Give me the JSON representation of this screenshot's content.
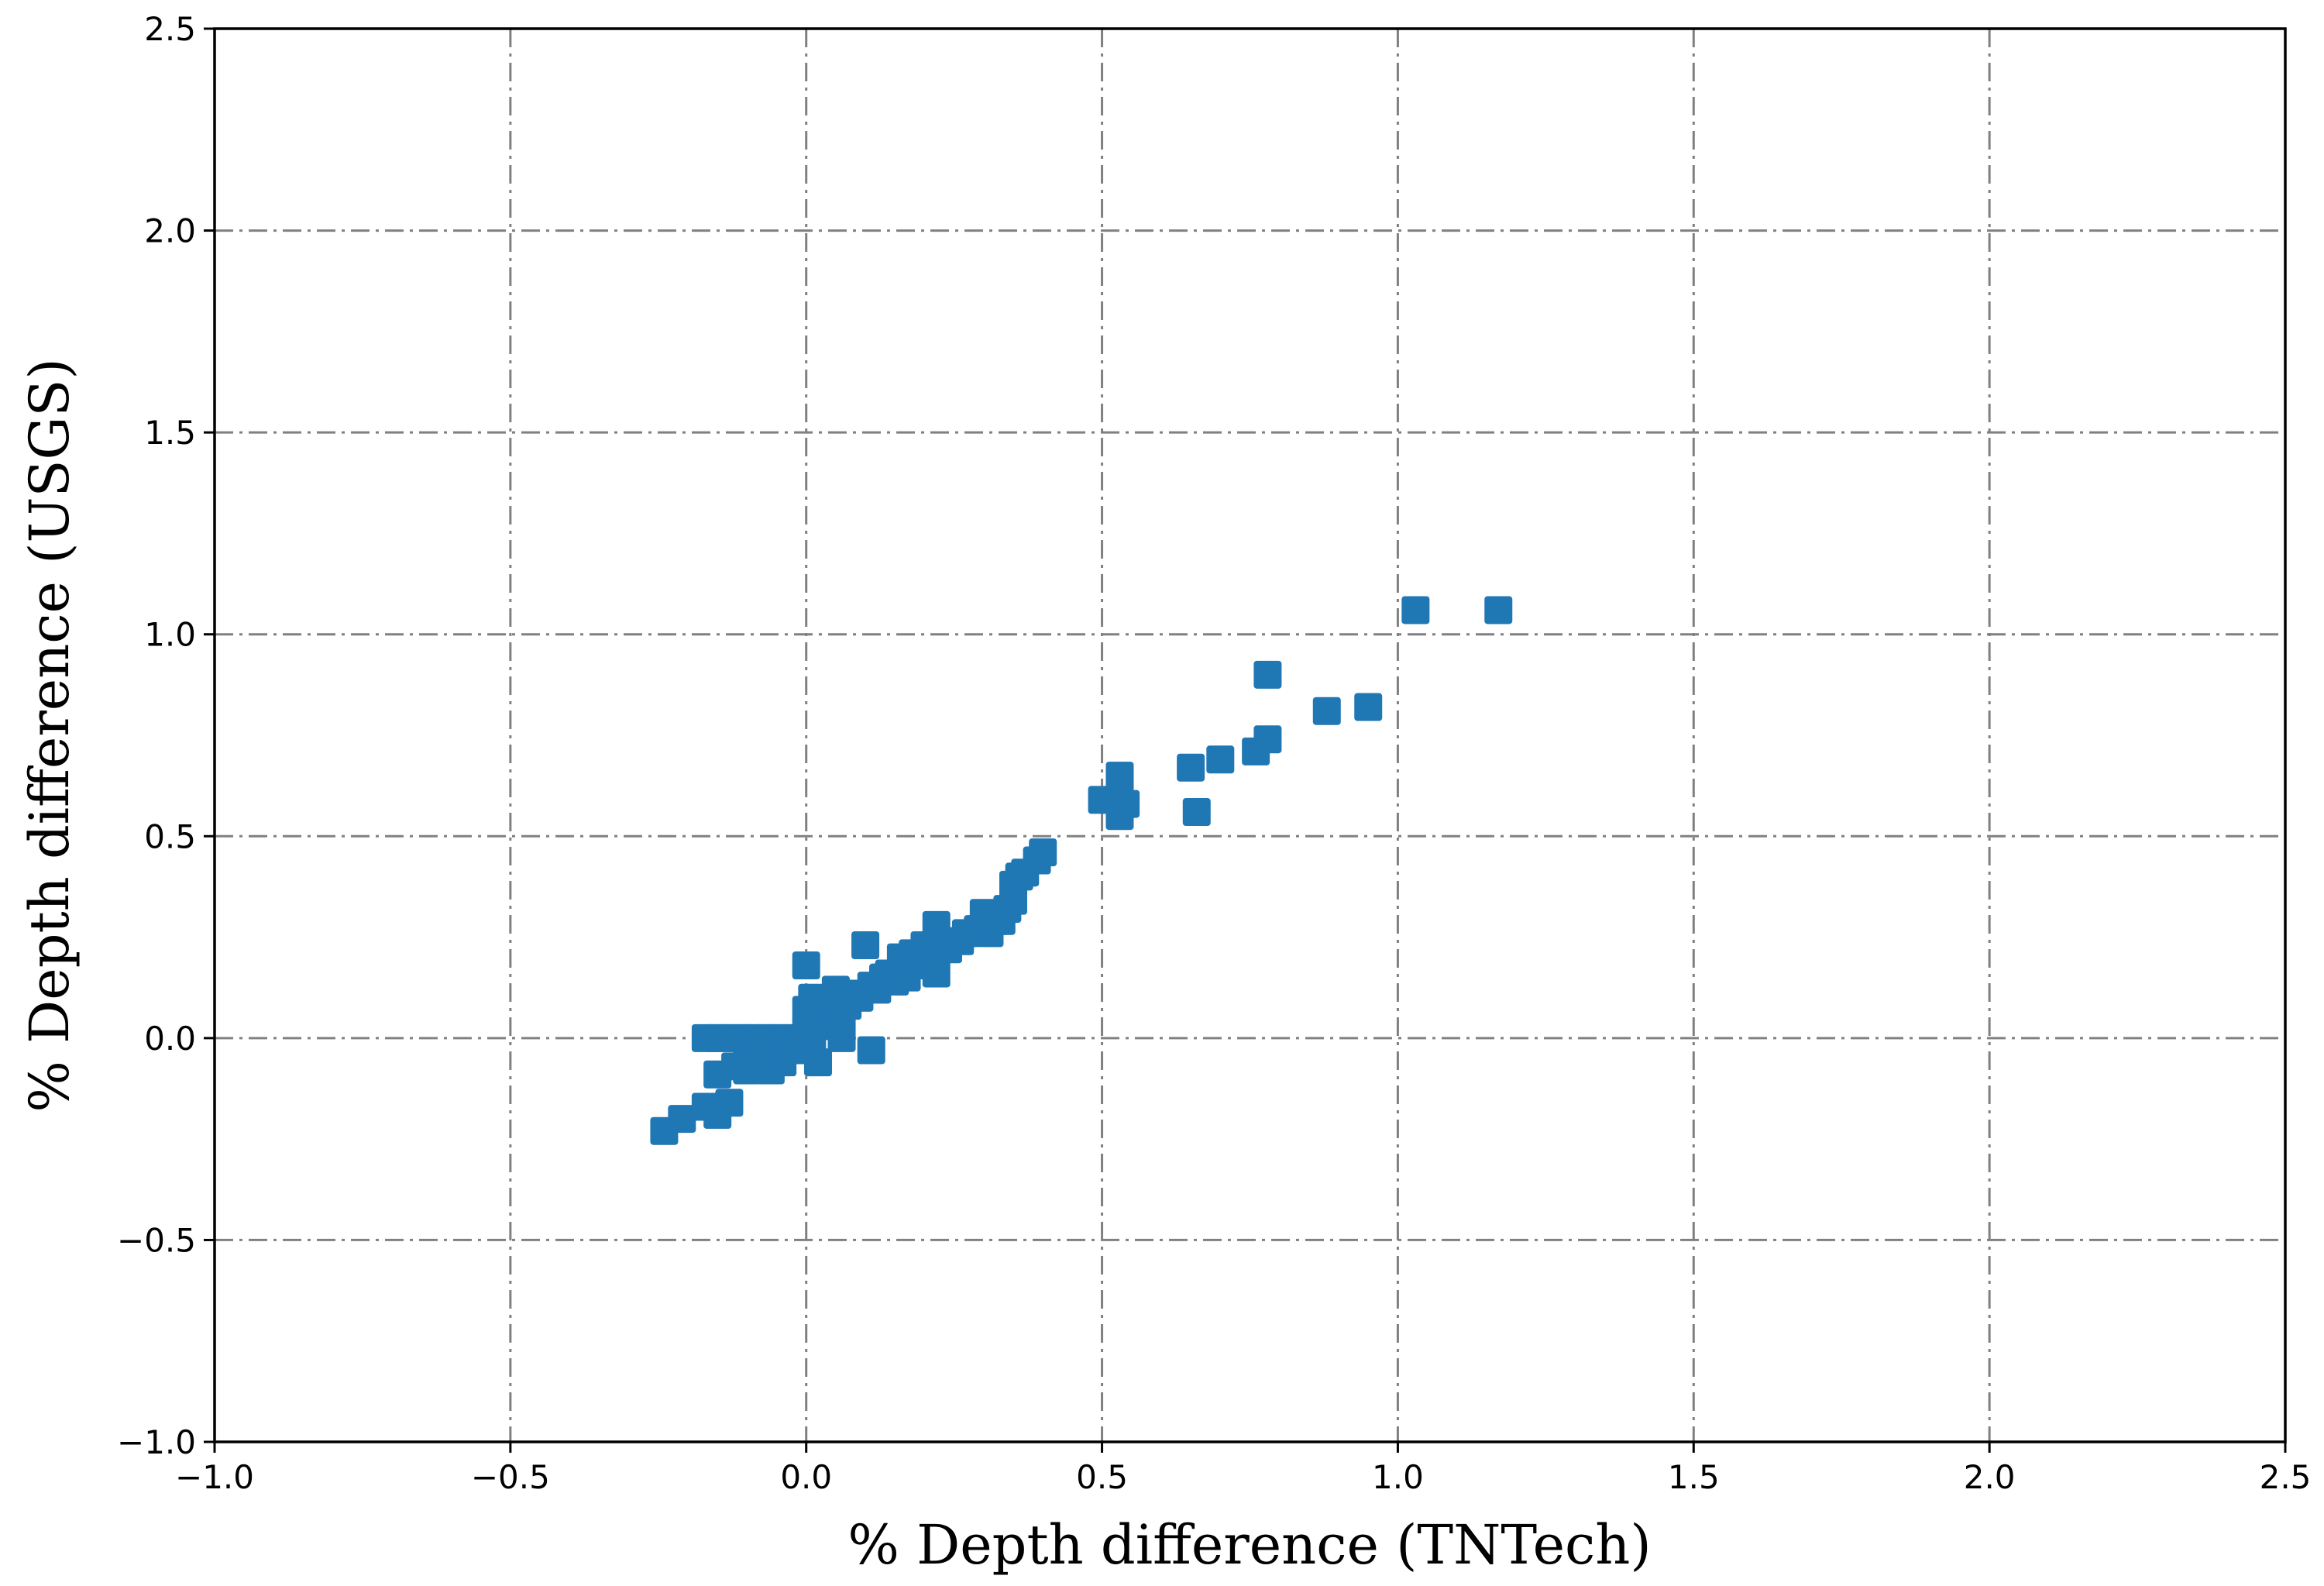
{
  "chart_data": {
    "type": "scatter",
    "title": "",
    "xlabel": "% Depth difference (TNTech)",
    "ylabel": "% Depth difference (USGS)",
    "xlim": [
      -1.0,
      2.5
    ],
    "ylim": [
      -1.0,
      2.5
    ],
    "x_ticks": [
      "−1.0",
      "−0.5",
      "0.0",
      "0.5",
      "1.0",
      "1.5",
      "2.0",
      "2.5"
    ],
    "y_ticks": [
      "−1.0",
      "−0.5",
      "0.0",
      "0.5",
      "1.0",
      "1.5",
      "2.0",
      "2.5"
    ],
    "x_tick_values": [
      -1.0,
      -0.5,
      0.0,
      0.5,
      1.0,
      1.5,
      2.0,
      2.5
    ],
    "y_tick_values": [
      -1.0,
      -0.5,
      0.0,
      0.5,
      1.0,
      1.5,
      2.0,
      2.5
    ],
    "grid": true,
    "marker": "square",
    "color": "#1f77b4",
    "grid_color": "#808080",
    "points": [
      [
        -0.24,
        -0.23
      ],
      [
        -0.21,
        -0.2
      ],
      [
        -0.17,
        -0.17
      ],
      [
        -0.15,
        -0.19
      ],
      [
        -0.13,
        -0.16
      ],
      [
        -0.15,
        -0.09
      ],
      [
        -0.12,
        -0.07
      ],
      [
        -0.1,
        -0.08
      ],
      [
        -0.08,
        -0.07
      ],
      [
        -0.06,
        -0.08
      ],
      [
        -0.04,
        -0.06
      ],
      [
        -0.17,
        0.0
      ],
      [
        -0.15,
        0.0
      ],
      [
        -0.13,
        0.0
      ],
      [
        -0.11,
        0.0
      ],
      [
        -0.09,
        0.0
      ],
      [
        -0.07,
        0.0
      ],
      [
        -0.05,
        0.0
      ],
      [
        -0.03,
        0.0
      ],
      [
        -0.01,
        0.0
      ],
      [
        0.01,
        0.0
      ],
      [
        -0.1,
        -0.04
      ],
      [
        -0.07,
        -0.03
      ],
      [
        -0.03,
        -0.02
      ],
      [
        0.0,
        -0.03
      ],
      [
        0.02,
        -0.06
      ],
      [
        0.0,
        0.02
      ],
      [
        0.01,
        0.05
      ],
      [
        0.0,
        0.07
      ],
      [
        0.01,
        0.1
      ],
      [
        0.0,
        0.18
      ],
      [
        0.02,
        0.03
      ],
      [
        0.03,
        0.06
      ],
      [
        0.04,
        0.09
      ],
      [
        0.05,
        0.12
      ],
      [
        0.04,
        0.03
      ],
      [
        0.06,
        0.05
      ],
      [
        0.06,
        0.0
      ],
      [
        0.07,
        0.08
      ],
      [
        0.08,
        0.11
      ],
      [
        0.09,
        0.1
      ],
      [
        0.1,
        0.23
      ],
      [
        0.11,
        -0.03
      ],
      [
        0.11,
        0.13
      ],
      [
        0.12,
        0.12
      ],
      [
        0.13,
        0.15
      ],
      [
        0.14,
        0.16
      ],
      [
        0.15,
        0.14
      ],
      [
        0.16,
        0.17
      ],
      [
        0.16,
        0.2
      ],
      [
        0.17,
        0.15
      ],
      [
        0.18,
        0.21
      ],
      [
        0.19,
        0.19
      ],
      [
        0.2,
        0.23
      ],
      [
        0.21,
        0.18
      ],
      [
        0.22,
        0.16
      ],
      [
        0.22,
        0.28
      ],
      [
        0.23,
        0.24
      ],
      [
        0.24,
        0.22
      ],
      [
        0.26,
        0.24
      ],
      [
        0.27,
        0.26
      ],
      [
        0.29,
        0.27
      ],
      [
        0.3,
        0.31
      ],
      [
        0.31,
        0.26
      ],
      [
        0.32,
        0.29
      ],
      [
        0.33,
        0.29
      ],
      [
        0.34,
        0.32
      ],
      [
        0.35,
        0.34
      ],
      [
        0.35,
        0.38
      ],
      [
        0.36,
        0.4
      ],
      [
        0.37,
        0.41
      ],
      [
        0.39,
        0.44
      ],
      [
        0.4,
        0.46
      ],
      [
        0.5,
        0.59
      ],
      [
        0.53,
        0.55
      ],
      [
        0.53,
        0.6
      ],
      [
        0.53,
        0.65
      ],
      [
        0.54,
        0.58
      ],
      [
        0.65,
        0.67
      ],
      [
        0.66,
        0.56
      ],
      [
        0.7,
        0.69
      ],
      [
        0.76,
        0.71
      ],
      [
        0.78,
        0.74
      ],
      [
        0.78,
        0.9
      ],
      [
        0.88,
        0.81
      ],
      [
        0.95,
        0.82
      ],
      [
        1.03,
        1.06
      ],
      [
        1.17,
        1.06
      ]
    ]
  }
}
